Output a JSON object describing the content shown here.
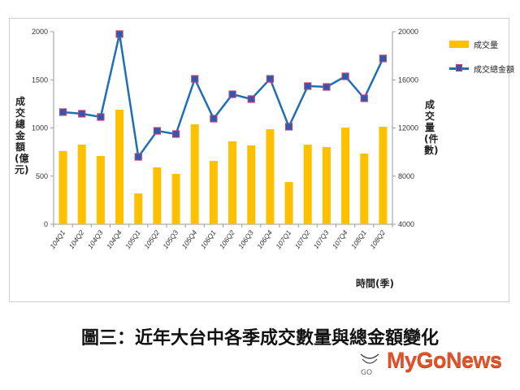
{
  "chart_data": {
    "type": "bar+line",
    "title": "圖三：近年大台中各季成交數量與總金額變化",
    "xlabel": "時間(季)",
    "ylabel_left": "成交總金額(億元)",
    "ylabel_right": "成交量(件數)",
    "ylim_left": [
      0,
      2000
    ],
    "yticks_left": [
      0,
      500,
      1000,
      1500,
      2000
    ],
    "ylim_right": [
      4000,
      20000
    ],
    "yticks_right": [
      4000,
      8000,
      12000,
      16000,
      20000
    ],
    "grid": false,
    "legend_position": "right",
    "categories": [
      "104Q1",
      "104Q2",
      "104Q3",
      "104Q4",
      "105Q1",
      "105Q2",
      "105Q3",
      "105Q4",
      "106Q1",
      "106Q2",
      "106Q3",
      "106Q4",
      "107Q1",
      "107Q2",
      "107Q3",
      "107Q4",
      "108Q1",
      "108Q2"
    ],
    "series": [
      {
        "name": "成交量",
        "type": "bar",
        "axis": "right",
        "unit": "件數",
        "color": "#FFC000",
        "values": [
          10080,
          10616,
          9672,
          13520,
          6560,
          8728,
          8184,
          12304,
          9264,
          10888,
          10552,
          11896,
          7512,
          10616,
          10416,
          12032,
          9872,
          12104
        ]
      },
      {
        "name": "成交總金額",
        "type": "line",
        "axis": "left",
        "unit": "億元",
        "color": "#1F6FB5",
        "marker_color": "#2E57B8",
        "marker_edge": "#C0406A",
        "values": [
          1165,
          1148,
          1114,
          1975,
          700,
          970,
          937,
          1510,
          1097,
          1350,
          1300,
          1510,
          1013,
          1435,
          1426,
          1536,
          1308,
          1722
        ]
      }
    ]
  },
  "legend": {
    "bar_label": "成交量",
    "line_label": "成交總金額"
  },
  "axes": {
    "left_title": "成交總金額(億元)",
    "right_title": "成交量(件數)",
    "x_title": "時間(季)"
  },
  "caption": "圖三：近年大台中各季成交數量與總金額變化",
  "watermark": {
    "brand": "MyGoNews",
    "mark": "GO"
  }
}
